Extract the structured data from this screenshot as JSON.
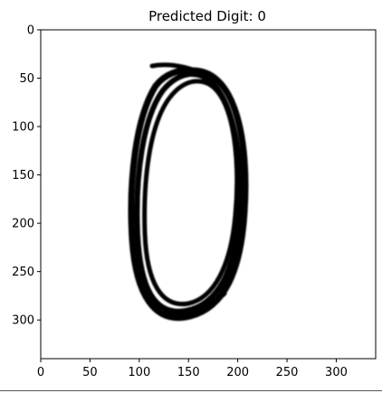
{
  "figure": {
    "title": "Predicted Digit: 0"
  },
  "image": {
    "description_icon": "handwritten-zero-image",
    "extent_x": [
      0,
      340
    ],
    "extent_y": [
      340,
      0
    ]
  },
  "axes": {
    "x_ticks": [
      0,
      50,
      100,
      150,
      200,
      250,
      300
    ],
    "x_tick_labels": [
      "0",
      "50",
      "100",
      "150",
      "200",
      "250",
      "300"
    ],
    "y_ticks": [
      0,
      50,
      100,
      150,
      200,
      250,
      300
    ],
    "y_tick_labels": [
      "0",
      "50",
      "100",
      "150",
      "200",
      "250",
      "300"
    ]
  },
  "colors": {
    "ink": "#000000",
    "background": "#ffffff",
    "frame": "#000000"
  }
}
